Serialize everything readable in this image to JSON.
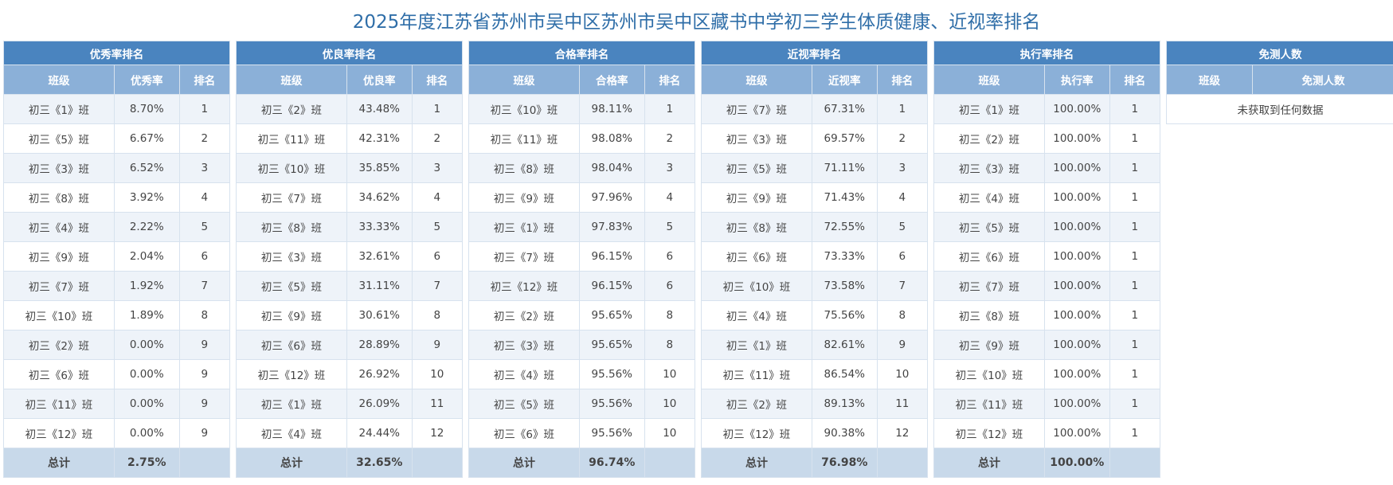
{
  "page_title": "2025年度江苏省苏州市吴中区苏州市吴中区藏书中学初三学生体质健康、近视率排名",
  "tables": [
    {
      "title": "优秀率排名",
      "columns": [
        "班级",
        "优秀率",
        "排名"
      ],
      "rows": [
        [
          "初三《1》班",
          "8.70%",
          "1"
        ],
        [
          "初三《5》班",
          "6.67%",
          "2"
        ],
        [
          "初三《3》班",
          "6.52%",
          "3"
        ],
        [
          "初三《8》班",
          "3.92%",
          "4"
        ],
        [
          "初三《4》班",
          "2.22%",
          "5"
        ],
        [
          "初三《9》班",
          "2.04%",
          "6"
        ],
        [
          "初三《7》班",
          "1.92%",
          "7"
        ],
        [
          "初三《10》班",
          "1.89%",
          "8"
        ],
        [
          "初三《2》班",
          "0.00%",
          "9"
        ],
        [
          "初三《6》班",
          "0.00%",
          "9"
        ],
        [
          "初三《11》班",
          "0.00%",
          "9"
        ],
        [
          "初三《12》班",
          "0.00%",
          "9"
        ]
      ],
      "total": [
        "总计",
        "2.75%",
        ""
      ]
    },
    {
      "title": "优良率排名",
      "columns": [
        "班级",
        "优良率",
        "排名"
      ],
      "rows": [
        [
          "初三《2》班",
          "43.48%",
          "1"
        ],
        [
          "初三《11》班",
          "42.31%",
          "2"
        ],
        [
          "初三《10》班",
          "35.85%",
          "3"
        ],
        [
          "初三《7》班",
          "34.62%",
          "4"
        ],
        [
          "初三《8》班",
          "33.33%",
          "5"
        ],
        [
          "初三《3》班",
          "32.61%",
          "6"
        ],
        [
          "初三《5》班",
          "31.11%",
          "7"
        ],
        [
          "初三《9》班",
          "30.61%",
          "8"
        ],
        [
          "初三《6》班",
          "28.89%",
          "9"
        ],
        [
          "初三《12》班",
          "26.92%",
          "10"
        ],
        [
          "初三《1》班",
          "26.09%",
          "11"
        ],
        [
          "初三《4》班",
          "24.44%",
          "12"
        ]
      ],
      "total": [
        "总计",
        "32.65%",
        ""
      ]
    },
    {
      "title": "合格率排名",
      "columns": [
        "班级",
        "合格率",
        "排名"
      ],
      "rows": [
        [
          "初三《10》班",
          "98.11%",
          "1"
        ],
        [
          "初三《11》班",
          "98.08%",
          "2"
        ],
        [
          "初三《8》班",
          "98.04%",
          "3"
        ],
        [
          "初三《9》班",
          "97.96%",
          "4"
        ],
        [
          "初三《1》班",
          "97.83%",
          "5"
        ],
        [
          "初三《7》班",
          "96.15%",
          "6"
        ],
        [
          "初三《12》班",
          "96.15%",
          "6"
        ],
        [
          "初三《2》班",
          "95.65%",
          "8"
        ],
        [
          "初三《3》班",
          "95.65%",
          "8"
        ],
        [
          "初三《4》班",
          "95.56%",
          "10"
        ],
        [
          "初三《5》班",
          "95.56%",
          "10"
        ],
        [
          "初三《6》班",
          "95.56%",
          "10"
        ]
      ],
      "total": [
        "总计",
        "96.74%",
        ""
      ]
    },
    {
      "title": "近视率排名",
      "columns": [
        "班级",
        "近视率",
        "排名"
      ],
      "rows": [
        [
          "初三《7》班",
          "67.31%",
          "1"
        ],
        [
          "初三《3》班",
          "69.57%",
          "2"
        ],
        [
          "初三《5》班",
          "71.11%",
          "3"
        ],
        [
          "初三《9》班",
          "71.43%",
          "4"
        ],
        [
          "初三《8》班",
          "72.55%",
          "5"
        ],
        [
          "初三《6》班",
          "73.33%",
          "6"
        ],
        [
          "初三《10》班",
          "73.58%",
          "7"
        ],
        [
          "初三《4》班",
          "75.56%",
          "8"
        ],
        [
          "初三《1》班",
          "82.61%",
          "9"
        ],
        [
          "初三《11》班",
          "86.54%",
          "10"
        ],
        [
          "初三《2》班",
          "89.13%",
          "11"
        ],
        [
          "初三《12》班",
          "90.38%",
          "12"
        ]
      ],
      "total": [
        "总计",
        "76.98%",
        ""
      ]
    },
    {
      "title": "执行率排名",
      "columns": [
        "班级",
        "执行率",
        "排名"
      ],
      "rows": [
        [
          "初三《1》班",
          "100.00%",
          "1"
        ],
        [
          "初三《2》班",
          "100.00%",
          "1"
        ],
        [
          "初三《3》班",
          "100.00%",
          "1"
        ],
        [
          "初三《4》班",
          "100.00%",
          "1"
        ],
        [
          "初三《5》班",
          "100.00%",
          "1"
        ],
        [
          "初三《6》班",
          "100.00%",
          "1"
        ],
        [
          "初三《7》班",
          "100.00%",
          "1"
        ],
        [
          "初三《8》班",
          "100.00%",
          "1"
        ],
        [
          "初三《9》班",
          "100.00%",
          "1"
        ],
        [
          "初三《10》班",
          "100.00%",
          "1"
        ],
        [
          "初三《11》班",
          "100.00%",
          "1"
        ],
        [
          "初三《12》班",
          "100.00%",
          "1"
        ]
      ],
      "total": [
        "总计",
        "100.00%",
        ""
      ]
    }
  ],
  "exempt": {
    "title": "免测人数",
    "columns": [
      "班级",
      "免测人数"
    ],
    "empty_text": "未获取到任何数据"
  }
}
